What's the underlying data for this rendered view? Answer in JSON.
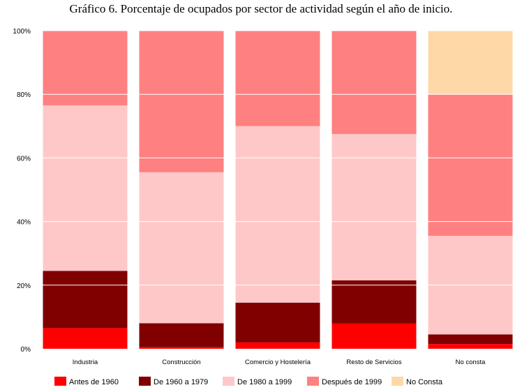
{
  "chart_data": {
    "type": "bar",
    "stacked": true,
    "title": "Gráfico 6. Porcentaje de ocupados por sector de actividad según el año de inicio.",
    "categories": [
      "Industria",
      "Construcción",
      "Comercio y Hostelería",
      "Resto de Servicios",
      "No consta"
    ],
    "y_ticks": [
      "0%",
      "20%",
      "40%",
      "60%",
      "80%",
      "100%"
    ],
    "ylim": [
      0,
      100
    ],
    "grid": true,
    "legend_position": "bottom",
    "series": [
      {
        "name": "Antes de 1960",
        "color": "#FF0000",
        "values": [
          6.5,
          0.5,
          2,
          8,
          1.5
        ]
      },
      {
        "name": "De 1960 a 1979",
        "color": "#800000",
        "values": [
          18,
          7.5,
          12.5,
          13.5,
          3
        ]
      },
      {
        "name": "De 1980 a 1999",
        "color": "#FFC8C8",
        "values": [
          52,
          47.5,
          55.5,
          46,
          31
        ]
      },
      {
        "name": "Después de 1999",
        "color": "#FF8080",
        "values": [
          23.5,
          44.5,
          30,
          32.5,
          44.5
        ]
      },
      {
        "name": "No Consta",
        "color": "#FFD8A8",
        "values": [
          0,
          0,
          0,
          0,
          20
        ]
      }
    ]
  }
}
